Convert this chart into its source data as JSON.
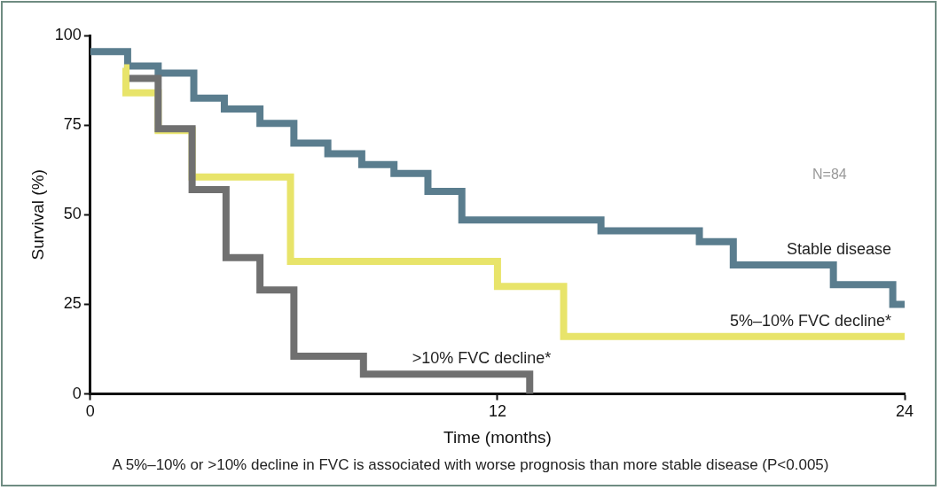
{
  "chart_data": {
    "type": "step",
    "xlabel": "Time (months)",
    "ylabel": "Survival (%)",
    "xlim": [
      0,
      24
    ],
    "xticks": [
      0,
      12,
      24
    ],
    "ylim": [
      0,
      100
    ],
    "yticks": [
      0,
      25,
      50,
      75,
      100
    ],
    "grid": false,
    "legend": false,
    "marker": "none",
    "line_style": "solid",
    "series": [
      {
        "name": ">10% FVC decline*",
        "color": "#707070",
        "x": [
          1.15,
          2,
          3,
          4,
          5,
          6,
          8.05,
          12.95
        ],
        "values": [
          88,
          74,
          57,
          38,
          29,
          10.5,
          5.5,
          0
        ]
      },
      {
        "name": "5%–10% FVC decline*",
        "color": "#e8e46a",
        "x": [
          1,
          1.05,
          2,
          3,
          5.9,
          12,
          13.95,
          24
        ],
        "values": [
          91,
          84,
          73.5,
          60.5,
          37,
          30,
          16,
          16
        ]
      },
      {
        "name": "Stable disease",
        "color": "#5a7d8e",
        "x": [
          0,
          1.1,
          2,
          3.05,
          3.95,
          5,
          6,
          7,
          8,
          8.95,
          9.95,
          10.95,
          15.05,
          17.95,
          18.95,
          21.9,
          23.65,
          24
        ],
        "values": [
          95.5,
          91.5,
          89.5,
          82.5,
          79.5,
          75.5,
          70,
          67,
          64,
          61.5,
          56.5,
          48.5,
          45.5,
          42.5,
          36,
          30.5,
          25,
          25
        ]
      }
    ],
    "annotations": [
      "N=84",
      "A 5%–10% or >10% decline in FVC is associated with worse prognosis than more stable disease (P<0.005)"
    ]
  }
}
